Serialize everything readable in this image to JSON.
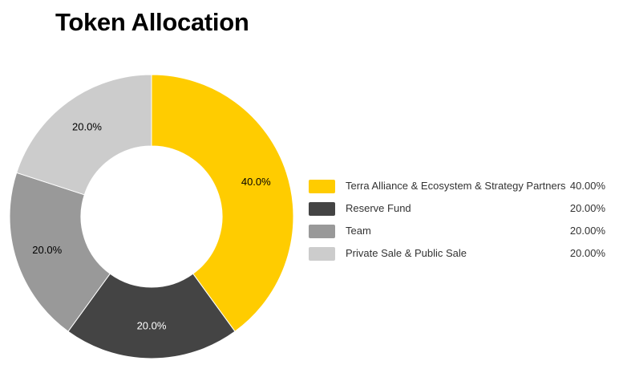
{
  "title": "Token Allocation",
  "chart_data": {
    "type": "pie",
    "title": "Token Allocation",
    "donut": true,
    "categories": [
      "Terra Alliance & Ecosystem & Strategy Partners",
      "Reserve Fund",
      "Team",
      "Private Sale & Public Sale"
    ],
    "values": [
      40.0,
      20.0,
      20.0,
      20.0
    ],
    "data_labels": [
      "40.0%",
      "20.0%",
      "20.0%",
      "20.0%"
    ],
    "legend_values": [
      "40.00%",
      "20.00%",
      "20.00%",
      "20.00%"
    ],
    "colors": [
      "#ffcc00",
      "#444444",
      "#999999",
      "#cccccc"
    ],
    "legend_position": "right"
  }
}
